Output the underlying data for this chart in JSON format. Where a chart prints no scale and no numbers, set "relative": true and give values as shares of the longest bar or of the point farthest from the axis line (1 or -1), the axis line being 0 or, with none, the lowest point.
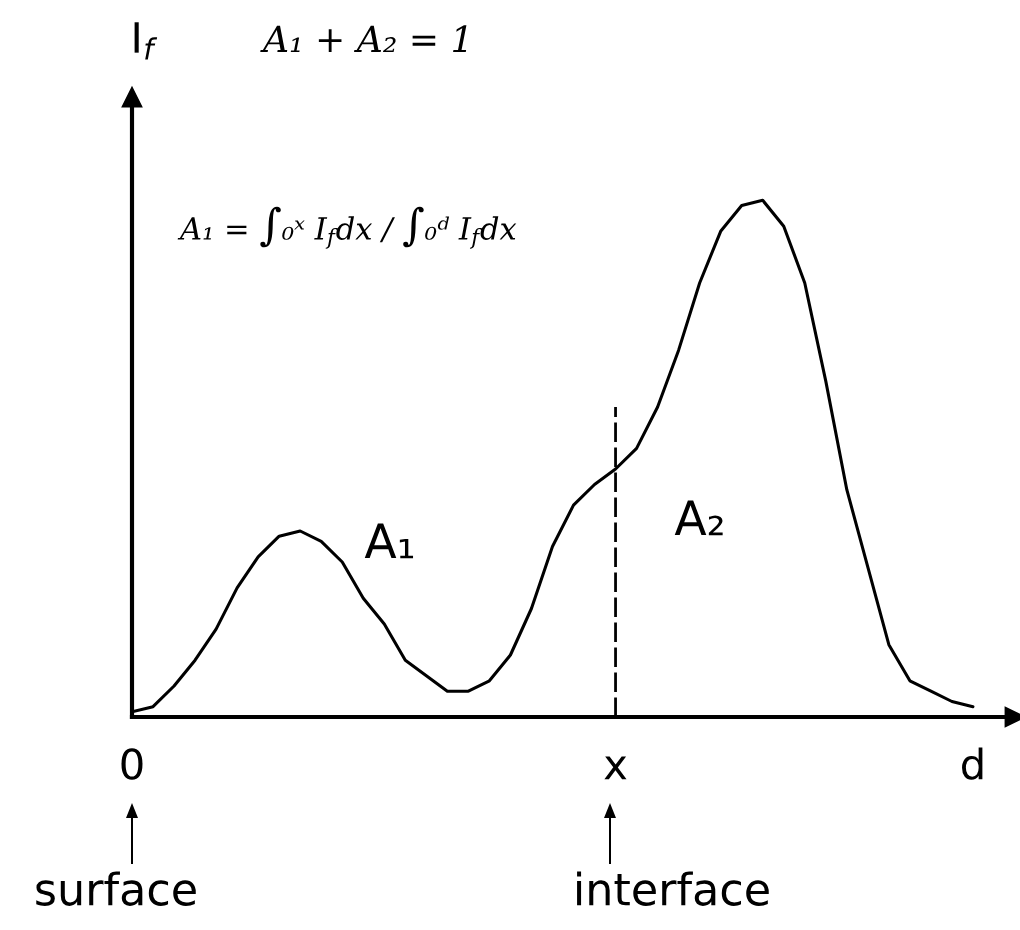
{
  "chart_data": {
    "type": "line",
    "relative": true,
    "ylabel": "I$_{f}$",
    "categories": [
      "0",
      null,
      null,
      null,
      null,
      null,
      null,
      null,
      null,
      null,
      null,
      null,
      null,
      null,
      null,
      null,
      null,
      null,
      null,
      null,
      null,
      null,
      null,
      "x",
      null,
      null,
      null,
      null,
      null,
      null,
      null,
      null,
      null,
      null,
      null,
      null,
      null,
      null,
      null,
      null,
      "d",
      null,
      null
    ],
    "series": [
      {
        "color": "#000000",
        "values": [
          0.01,
          0.02,
          0.06,
          0.11,
          0.17,
          0.25,
          0.31,
          0.35,
          0.36,
          0.34,
          0.3,
          0.23,
          0.18,
          0.11,
          0.08,
          0.05,
          0.05,
          0.07,
          0.12,
          0.21,
          0.33,
          0.41,
          0.45,
          0.48,
          0.52,
          0.6,
          0.71,
          0.84,
          0.94,
          0.99,
          1.0,
          0.95,
          0.84,
          0.65,
          0.44,
          0.29,
          0.14,
          0.07,
          0.05,
          0.03,
          0.02,
          null,
          null
        ]
      }
    ],
    "ref_lines": [
      {
        "axis": "x",
        "value": "x",
        "line_style": "dashed",
        "color": "#000000"
      }
    ],
    "line_style": "solid",
    "annotations": [
      "A₁ + A₂ = 1",
      "A₁ = ∫₀ˣ I$_{f}$dx / ∫₀ᵈ I$_{f}$dx",
      "A₁",
      "A₂",
      "surface",
      "interface"
    ]
  }
}
